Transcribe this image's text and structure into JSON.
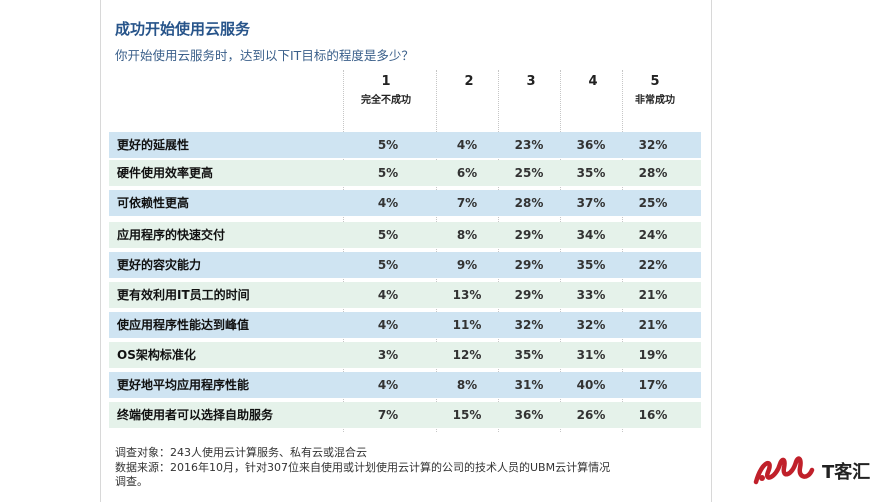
{
  "chart_data": {
    "type": "table",
    "title": "成功开始使用云服务",
    "subtitle": "你开始使用云服务时，达到以下IT目标的程度是多少？",
    "columns": [
      {
        "num": "1",
        "label": "完全不成功"
      },
      {
        "num": "2",
        "label": ""
      },
      {
        "num": "3",
        "label": ""
      },
      {
        "num": "4",
        "label": ""
      },
      {
        "num": "5",
        "label": "非常成功"
      }
    ],
    "rows": [
      {
        "label": "更好的延展性",
        "values": [
          "5%",
          "4%",
          "23%",
          "36%",
          "32%"
        ]
      },
      {
        "label": "硬件使用效率更高",
        "values": [
          "5%",
          "6%",
          "25%",
          "35%",
          "28%"
        ]
      },
      {
        "label": "可依赖性更高",
        "values": [
          "4%",
          "7%",
          "28%",
          "37%",
          "25%"
        ]
      },
      {
        "label": "应用程序的快速交付",
        "values": [
          "5%",
          "8%",
          "29%",
          "34%",
          "24%"
        ]
      },
      {
        "label": "更好的容灾能力",
        "values": [
          "5%",
          "9%",
          "29%",
          "35%",
          "22%"
        ]
      },
      {
        "label": "更有效利用IT员工的时间",
        "values": [
          "4%",
          "13%",
          "29%",
          "33%",
          "21%"
        ]
      },
      {
        "label": "使应用程序性能达到峰值",
        "values": [
          "4%",
          "11%",
          "32%",
          "32%",
          "21%"
        ]
      },
      {
        "label": "OS架构标准化",
        "values": [
          "3%",
          "12%",
          "35%",
          "31%",
          "19%"
        ]
      },
      {
        "label": "更好地平均应用程序性能",
        "values": [
          "4%",
          "8%",
          "31%",
          "40%",
          "17%"
        ]
      },
      {
        "label": "终端使用者可以选择自助服务",
        "values": [
          "7%",
          "15%",
          "36%",
          "26%",
          "16%"
        ]
      }
    ]
  },
  "notes": {
    "line1": "调查对象：243人使用云计算服务、私有云或混合云",
    "line2": "数据来源：2016年10月，针对307位来自使用或计划使用云计算的公司的技术人员的UBM云计算情况",
    "line3": "调查。"
  },
  "logo": {
    "text": "T客汇",
    "color": "#c0202a"
  },
  "colors": {
    "row_blue": "#cfe4f2",
    "row_green": "#e5f2ea",
    "title": "#27548a"
  }
}
